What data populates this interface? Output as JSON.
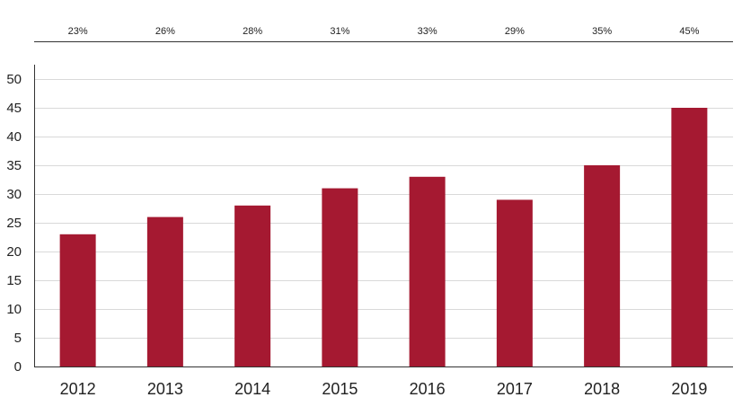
{
  "chart_data": {
    "type": "bar",
    "categories": [
      "2012",
      "2013",
      "2014",
      "2015",
      "2016",
      "2017",
      "2018",
      "2019"
    ],
    "values": [
      23,
      26,
      28,
      31,
      33,
      29,
      35,
      45
    ],
    "top_labels": [
      "23%",
      "26%",
      "28%",
      "31%",
      "33%",
      "29%",
      "35%",
      "45%"
    ],
    "y_ticks": [
      "0",
      "5",
      "10",
      "15",
      "20",
      "25",
      "30",
      "35",
      "40",
      "45",
      "50"
    ],
    "ylim": [
      0,
      50
    ],
    "grid": true,
    "bar_color": "#a51931"
  }
}
